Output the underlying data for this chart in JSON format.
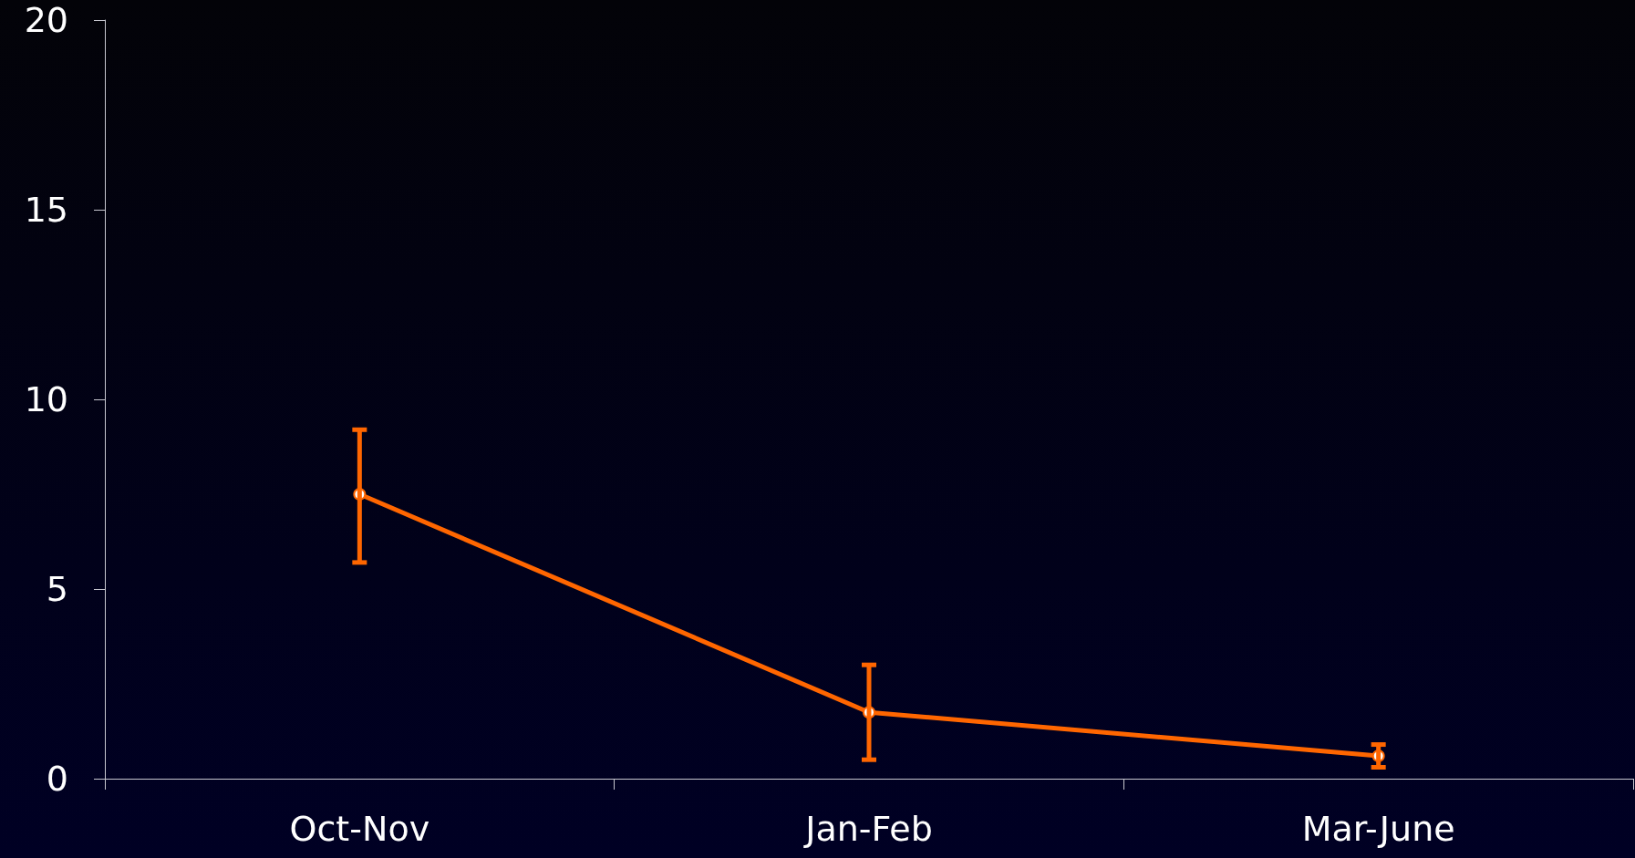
{
  "chart_data": {
    "type": "line",
    "categories": [
      "Oct-Nov",
      "Jan-Feb",
      "Mar-June"
    ],
    "series": [
      {
        "color": "#ff6600",
        "values": [
          7.5,
          1.75,
          0.6
        ],
        "errors": [
          [
            5.7,
            9.2
          ],
          [
            0.5,
            3.0
          ],
          [
            0.3,
            0.9
          ]
        ]
      }
    ],
    "ylim": [
      0,
      20
    ],
    "yticks": [
      0,
      5,
      10,
      15,
      20
    ],
    "grid": false,
    "marker": "circle",
    "line_style": "solid"
  }
}
